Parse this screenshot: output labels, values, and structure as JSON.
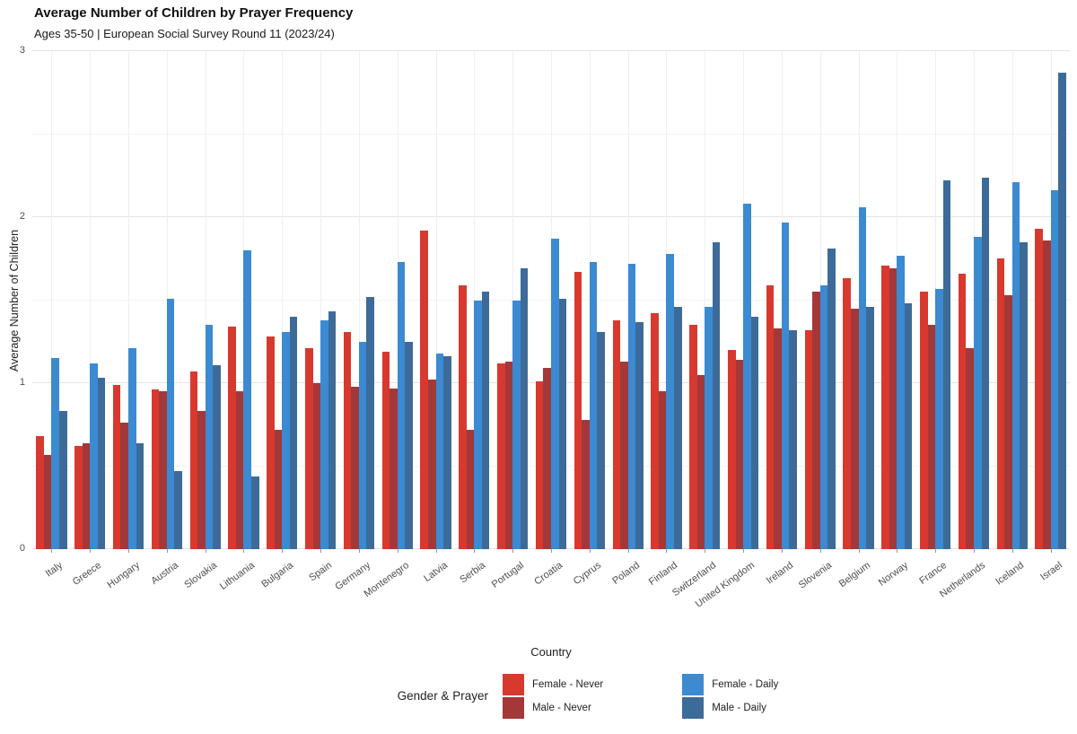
{
  "header": {
    "title": "Average Number of Children by Prayer Frequency",
    "subtitle": "Ages 35-50 | European Social Survey Round 11 (2023/24)"
  },
  "chart_data": {
    "type": "bar",
    "title": "Average Number of Children by Prayer Frequency",
    "subtitle": "Ages 35-50 | European Social Survey Round 11 (2023/24)",
    "xlabel": "Country",
    "ylabel": "Average Number of Children",
    "ylim": [
      0,
      3
    ],
    "yticks": [
      0,
      1,
      2,
      3
    ],
    "grid": "horizontal major at integers, minor at halves, faint vertical at category centers",
    "legend_title": "Gender & Prayer",
    "legend_position": "bottom-center",
    "categories": [
      "Italy",
      "Greece",
      "Hungary",
      "Austria",
      "Slovakia",
      "Lithuania",
      "Bulgaria",
      "Spain",
      "Germany",
      "Montenegro",
      "Latvia",
      "Serbia",
      "Portugal",
      "Croatia",
      "Cyprus",
      "Poland",
      "Finland",
      "Switzerland",
      "United Kingdom",
      "Ireland",
      "Slovenia",
      "Belgium",
      "Norway",
      "France",
      "Netherlands",
      "Iceland",
      "Israel"
    ],
    "series": [
      {
        "name": "Female - Never",
        "color": "#d8392f",
        "values": [
          0.68,
          0.62,
          0.99,
          0.96,
          1.07,
          1.34,
          1.28,
          1.21,
          1.31,
          1.19,
          1.92,
          1.59,
          1.12,
          1.01,
          1.67,
          1.38,
          1.42,
          1.35,
          1.2,
          1.59,
          1.32,
          1.63,
          1.71,
          1.55,
          1.66,
          1.75,
          1.93
        ]
      },
      {
        "name": "Male - Never",
        "color": "#a33838",
        "values": [
          0.57,
          0.64,
          0.76,
          0.95,
          0.83,
          0.95,
          0.72,
          1.0,
          0.98,
          0.97,
          1.02,
          0.72,
          1.13,
          1.09,
          0.78,
          1.13,
          0.95,
          1.05,
          1.14,
          1.33,
          1.55,
          1.45,
          1.69,
          1.35,
          1.21,
          1.53,
          1.86
        ]
      },
      {
        "name": "Female - Daily",
        "color": "#3b8ad2",
        "values": [
          1.15,
          1.12,
          1.21,
          1.51,
          1.35,
          1.8,
          1.31,
          1.38,
          1.25,
          1.73,
          1.18,
          1.5,
          1.5,
          1.87,
          1.73,
          1.72,
          1.78,
          1.46,
          2.08,
          1.97,
          1.59,
          2.06,
          1.77,
          1.57,
          1.88,
          2.21,
          2.16
        ]
      },
      {
        "name": "Male - Daily",
        "color": "#3d6b99",
        "values": [
          0.83,
          1.03,
          0.64,
          0.47,
          1.11,
          0.44,
          1.4,
          1.43,
          1.52,
          1.25,
          1.16,
          1.55,
          1.69,
          1.51,
          1.31,
          1.37,
          1.46,
          1.85,
          1.4,
          1.32,
          1.81,
          1.46,
          1.48,
          2.22,
          2.24,
          1.85,
          2.87
        ]
      }
    ]
  }
}
